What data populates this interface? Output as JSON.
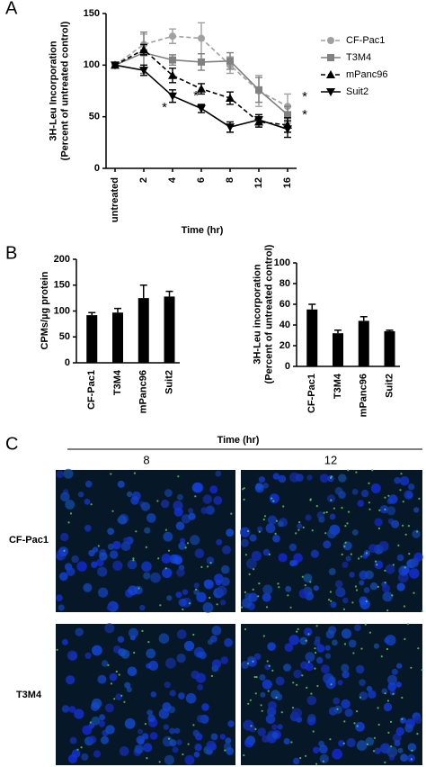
{
  "panel_labels": [
    "A",
    "B",
    "C"
  ],
  "chart_data": [
    {
      "type": "line",
      "y_label": [
        "3H-Leu Incorporation",
        "(Percent of untreated control)"
      ],
      "x_label": "Time (hr)",
      "categories": [
        "untreated",
        "2",
        "4",
        "6",
        "8",
        "12",
        "16"
      ],
      "ylim": [
        0,
        150
      ],
      "yticks": [
        0,
        50,
        100,
        150
      ],
      "legend": "right",
      "series": [
        {
          "name": "CF-Pac1",
          "color": "#a0a0a0",
          "marker": "circle",
          "dashed": true,
          "values": [
            100,
            120,
            128,
            126,
            100,
            75,
            60
          ],
          "errors": [
            0,
            10,
            7,
            15,
            8,
            15,
            12
          ]
        },
        {
          "name": "T3M4",
          "color": "#808080",
          "marker": "square",
          "dashed": false,
          "values": [
            100,
            112,
            105,
            103,
            104,
            76,
            52
          ],
          "errors": [
            0,
            20,
            5,
            8,
            8,
            12,
            8
          ]
        },
        {
          "name": "mPanc96",
          "color": "#000000",
          "marker": "triangle",
          "dashed": true,
          "values": [
            100,
            115,
            90,
            77,
            68,
            45,
            42
          ],
          "errors": [
            0,
            5,
            7,
            5,
            6,
            5,
            7
          ]
        },
        {
          "name": "Suit2",
          "color": "#000000",
          "marker": "triangle-down",
          "dashed": false,
          "values": [
            100,
            95,
            70,
            58,
            40,
            47,
            38
          ],
          "errors": [
            0,
            5,
            6,
            4,
            5,
            5,
            8
          ]
        }
      ],
      "annotations": [
        "*",
        "*",
        "*",
        "*"
      ]
    },
    {
      "type": "bar",
      "y_label": [
        "CPMs/µg protein"
      ],
      "color": "#000000",
      "categories": [
        "CF-Pac1",
        "T3M4",
        "mPanc96",
        "Suit2"
      ],
      "values": [
        92,
        97,
        125,
        128
      ],
      "errors": [
        5,
        8,
        25,
        10
      ],
      "ylim": [
        0,
        200
      ],
      "yticks": [
        0,
        50,
        100,
        150,
        200
      ]
    },
    {
      "type": "bar",
      "y_label": [
        "3H-Leu incorporation",
        "(Percent of untreated control)"
      ],
      "color": "#000000",
      "categories": [
        "CF-Pac1",
        "T3M4",
        "mPanc96",
        "Suit2"
      ],
      "values": [
        55,
        32,
        44,
        34
      ],
      "errors": [
        5,
        3,
        4,
        1
      ],
      "ylim": [
        0,
        100
      ],
      "yticks": [
        0,
        20,
        40,
        60,
        80,
        100
      ]
    }
  ],
  "micrograph": {
    "title": "Time (hr)",
    "columns": [
      "8",
      "12"
    ],
    "rows": [
      "CF-Pac1",
      "T3M4"
    ]
  }
}
